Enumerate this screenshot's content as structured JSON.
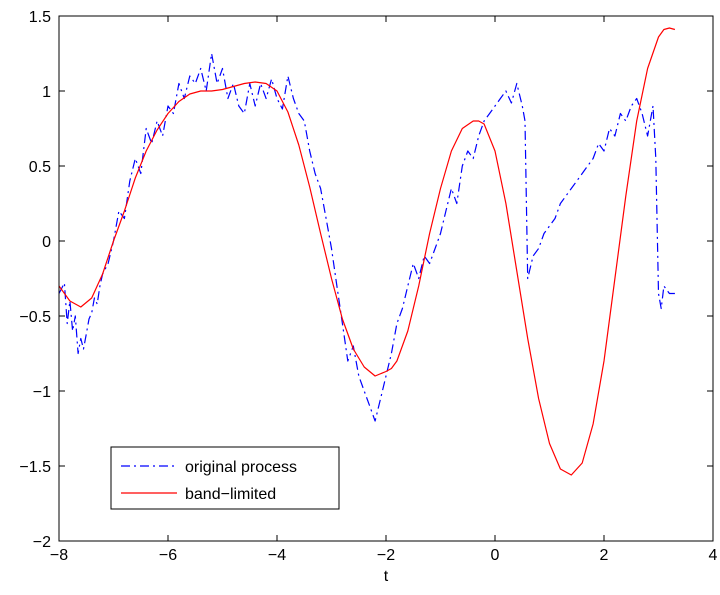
{
  "chart_data": {
    "type": "line",
    "title": "",
    "xlabel": "t",
    "ylabel": "",
    "xlim": [
      -8,
      4
    ],
    "ylim": [
      -2,
      1.5
    ],
    "grid": false,
    "legend_placement": "bottom-left",
    "x_ticks": [
      -8,
      -6,
      -4,
      -2,
      0,
      2,
      4
    ],
    "x_tick_labels": [
      "−8",
      "−6",
      "−4",
      "−2",
      "0",
      "2",
      "4"
    ],
    "y_ticks": [
      -2,
      -1.5,
      -1,
      -0.5,
      0,
      0.5,
      1,
      1.5
    ],
    "y_tick_labels": [
      "−2",
      "−1.5",
      "−1",
      "−0.5",
      "0",
      "0.5",
      "1",
      "1.5"
    ],
    "series": [
      {
        "name": "original process",
        "color": "#0000ff",
        "line_style": "dash-dot",
        "x": [
          -8.0,
          -7.9,
          -7.85,
          -7.8,
          -7.75,
          -7.7,
          -7.65,
          -7.6,
          -7.55,
          -7.5,
          -7.45,
          -7.4,
          -7.35,
          -7.3,
          -7.25,
          -7.2,
          -7.1,
          -7.0,
          -6.9,
          -6.8,
          -6.7,
          -6.6,
          -6.5,
          -6.4,
          -6.3,
          -6.2,
          -6.1,
          -6.0,
          -5.9,
          -5.8,
          -5.7,
          -5.6,
          -5.5,
          -5.4,
          -5.3,
          -5.2,
          -5.1,
          -5.0,
          -4.9,
          -4.8,
          -4.7,
          -4.6,
          -4.5,
          -4.4,
          -4.3,
          -4.2,
          -4.1,
          -4.0,
          -3.9,
          -3.8,
          -3.7,
          -3.6,
          -3.5,
          -3.4,
          -3.3,
          -3.2,
          -3.1,
          -3.0,
          -2.9,
          -2.8,
          -2.7,
          -2.6,
          -2.5,
          -2.4,
          -2.3,
          -2.2,
          -2.1,
          -2.0,
          -1.9,
          -1.8,
          -1.7,
          -1.6,
          -1.5,
          -1.4,
          -1.3,
          -1.2,
          -1.1,
          -1.0,
          -0.9,
          -0.8,
          -0.7,
          -0.6,
          -0.5,
          -0.4,
          -0.3,
          -0.2,
          -0.1,
          0.0,
          0.1,
          0.2,
          0.3,
          0.4,
          0.5,
          0.55,
          0.6,
          0.7,
          0.8,
          0.9,
          1.0,
          1.1,
          1.2,
          1.3,
          1.4,
          1.5,
          1.6,
          1.7,
          1.8,
          1.9,
          2.0,
          2.1,
          2.2,
          2.3,
          2.4,
          2.5,
          2.6,
          2.7,
          2.8,
          2.9,
          2.95,
          3.0,
          3.05,
          3.1,
          3.2,
          3.3
        ],
        "y": [
          -0.35,
          -0.28,
          -0.55,
          -0.4,
          -0.6,
          -0.5,
          -0.75,
          -0.65,
          -0.72,
          -0.62,
          -0.52,
          -0.48,
          -0.38,
          -0.42,
          -0.3,
          -0.22,
          -0.15,
          0.0,
          0.2,
          0.15,
          0.4,
          0.55,
          0.45,
          0.75,
          0.65,
          0.8,
          0.7,
          0.9,
          0.85,
          1.05,
          0.95,
          1.1,
          1.05,
          1.15,
          1.0,
          1.25,
          1.05,
          1.15,
          0.95,
          1.05,
          0.9,
          0.85,
          1.05,
          0.9,
          1.05,
          0.95,
          1.08,
          0.95,
          0.88,
          1.1,
          0.95,
          0.85,
          0.8,
          0.6,
          0.45,
          0.35,
          0.15,
          -0.05,
          -0.3,
          -0.55,
          -0.8,
          -0.7,
          -0.9,
          -1.0,
          -1.1,
          -1.2,
          -1.05,
          -0.9,
          -0.75,
          -0.55,
          -0.45,
          -0.3,
          -0.15,
          -0.25,
          -0.1,
          -0.15,
          -0.05,
          0.05,
          0.2,
          0.35,
          0.25,
          0.5,
          0.6,
          0.55,
          0.7,
          0.8,
          0.85,
          0.9,
          0.95,
          1.0,
          0.92,
          1.05,
          0.9,
          0.8,
          -0.25,
          -0.1,
          -0.05,
          0.05,
          0.1,
          0.15,
          0.25,
          0.3,
          0.35,
          0.4,
          0.45,
          0.5,
          0.55,
          0.65,
          0.6,
          0.75,
          0.7,
          0.85,
          0.8,
          0.9,
          0.95,
          0.85,
          0.7,
          0.9,
          0.55,
          -0.35,
          -0.45,
          -0.3,
          -0.35,
          -0.35
        ]
      },
      {
        "name": "band−limited",
        "color": "#ff0000",
        "line_style": "solid",
        "x": [
          -8.0,
          -7.8,
          -7.6,
          -7.4,
          -7.2,
          -7.0,
          -6.8,
          -6.6,
          -6.4,
          -6.2,
          -6.0,
          -5.8,
          -5.6,
          -5.4,
          -5.2,
          -5.0,
          -4.8,
          -4.6,
          -4.4,
          -4.2,
          -4.0,
          -3.8,
          -3.6,
          -3.4,
          -3.2,
          -3.0,
          -2.8,
          -2.6,
          -2.4,
          -2.2,
          -2.0,
          -1.9,
          -1.8,
          -1.6,
          -1.4,
          -1.2,
          -1.0,
          -0.8,
          -0.6,
          -0.4,
          -0.3,
          -0.2,
          0.0,
          0.2,
          0.4,
          0.6,
          0.8,
          1.0,
          1.2,
          1.4,
          1.6,
          1.8,
          2.0,
          2.2,
          2.4,
          2.6,
          2.8,
          3.0,
          3.1,
          3.2,
          3.3
        ],
        "y": [
          -0.3,
          -0.4,
          -0.44,
          -0.38,
          -0.22,
          0.0,
          0.2,
          0.42,
          0.6,
          0.74,
          0.85,
          0.93,
          0.98,
          1.0,
          1.0,
          1.01,
          1.03,
          1.05,
          1.06,
          1.05,
          1.0,
          0.86,
          0.64,
          0.36,
          0.05,
          -0.25,
          -0.52,
          -0.72,
          -0.84,
          -0.9,
          -0.87,
          -0.85,
          -0.8,
          -0.6,
          -0.3,
          0.05,
          0.35,
          0.6,
          0.75,
          0.8,
          0.8,
          0.78,
          0.6,
          0.25,
          -0.2,
          -0.65,
          -1.05,
          -1.35,
          -1.52,
          -1.56,
          -1.48,
          -1.22,
          -0.8,
          -0.25,
          0.3,
          0.8,
          1.15,
          1.36,
          1.41,
          1.42,
          1.41
        ]
      }
    ]
  }
}
